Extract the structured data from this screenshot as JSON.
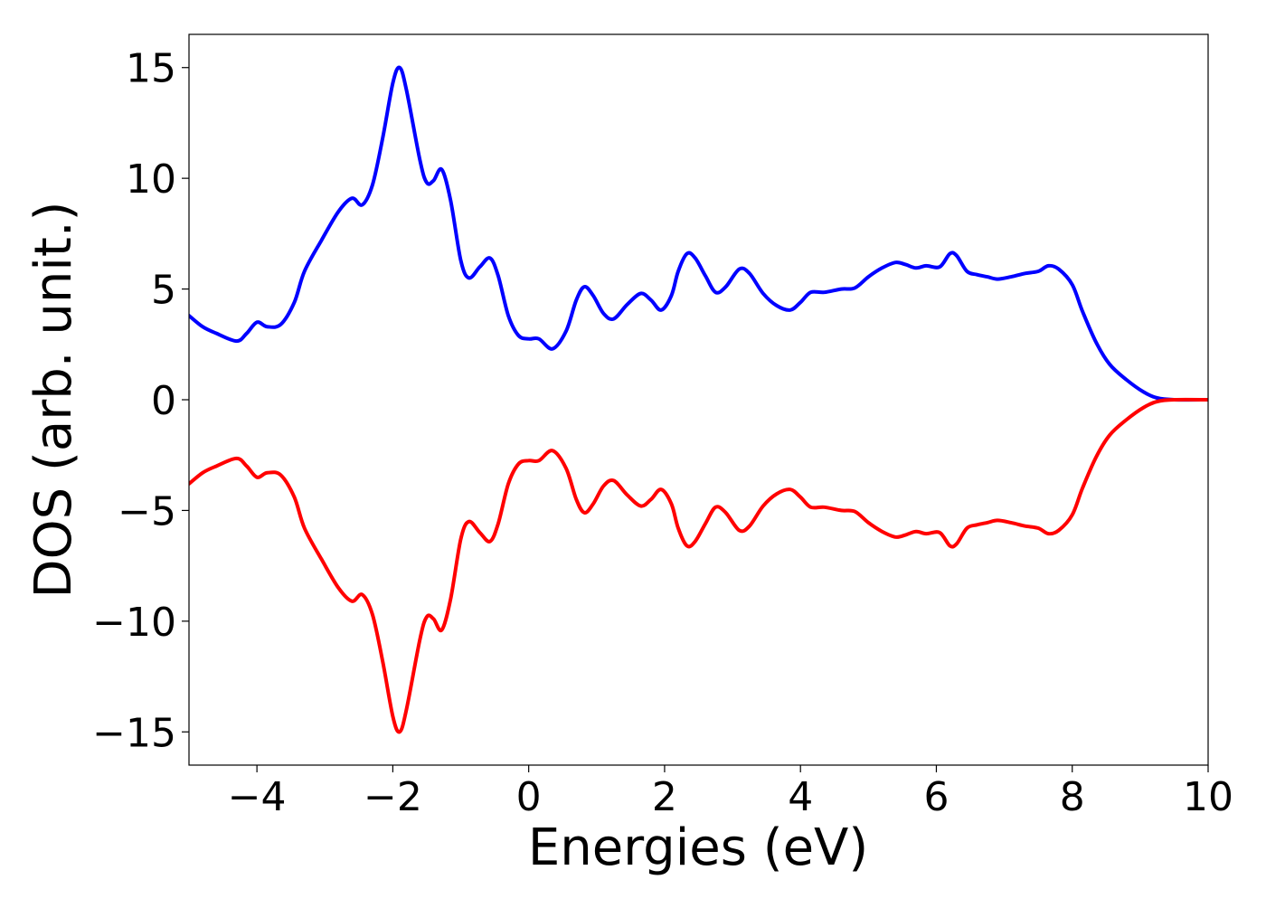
{
  "chart_data": {
    "type": "line",
    "title": "",
    "xlabel": "Energies (eV)",
    "ylabel": "DOS (arb. unit.)",
    "xlim": [
      -5,
      10
    ],
    "ylim": [
      -16.5,
      16.5
    ],
    "grid": false,
    "legend": "none",
    "x_ticks": [
      -4,
      -2,
      0,
      2,
      4,
      6,
      8,
      10
    ],
    "x_tick_labels": [
      "−4",
      "−2",
      "0",
      "2",
      "4",
      "6",
      "8",
      "10"
    ],
    "y_ticks": [
      -15,
      -10,
      -5,
      0,
      5,
      10,
      15
    ],
    "y_tick_labels": [
      "−15",
      "−10",
      "−5",
      "0",
      "5",
      "10",
      "15"
    ],
    "series": [
      {
        "color": "#0000ff",
        "points": [
          [
            -5.0,
            3.8
          ],
          [
            -4.8,
            3.3
          ],
          [
            -4.6,
            3.0
          ],
          [
            -4.3,
            2.65
          ],
          [
            -4.15,
            3.0
          ],
          [
            -4.0,
            3.5
          ],
          [
            -3.85,
            3.3
          ],
          [
            -3.65,
            3.4
          ],
          [
            -3.45,
            4.4
          ],
          [
            -3.3,
            5.8
          ],
          [
            -3.05,
            7.2
          ],
          [
            -2.8,
            8.5
          ],
          [
            -2.6,
            9.1
          ],
          [
            -2.45,
            8.8
          ],
          [
            -2.3,
            9.7
          ],
          [
            -2.15,
            11.8
          ],
          [
            -2.0,
            14.3
          ],
          [
            -1.9,
            15.0
          ],
          [
            -1.8,
            14.0
          ],
          [
            -1.6,
            10.8
          ],
          [
            -1.5,
            9.8
          ],
          [
            -1.4,
            9.9
          ],
          [
            -1.28,
            10.4
          ],
          [
            -1.15,
            9.0
          ],
          [
            -1.0,
            6.3
          ],
          [
            -0.88,
            5.5
          ],
          [
            -0.72,
            6.0
          ],
          [
            -0.57,
            6.4
          ],
          [
            -0.45,
            5.6
          ],
          [
            -0.3,
            3.8
          ],
          [
            -0.15,
            2.9
          ],
          [
            0.0,
            2.75
          ],
          [
            0.15,
            2.75
          ],
          [
            0.35,
            2.3
          ],
          [
            0.55,
            3.1
          ],
          [
            0.7,
            4.5
          ],
          [
            0.82,
            5.1
          ],
          [
            0.95,
            4.7
          ],
          [
            1.1,
            3.9
          ],
          [
            1.25,
            3.65
          ],
          [
            1.45,
            4.3
          ],
          [
            1.65,
            4.8
          ],
          [
            1.8,
            4.5
          ],
          [
            1.95,
            4.05
          ],
          [
            2.1,
            4.7
          ],
          [
            2.2,
            5.8
          ],
          [
            2.33,
            6.6
          ],
          [
            2.45,
            6.4
          ],
          [
            2.6,
            5.6
          ],
          [
            2.75,
            4.85
          ],
          [
            2.9,
            5.1
          ],
          [
            3.1,
            5.9
          ],
          [
            3.25,
            5.7
          ],
          [
            3.45,
            4.8
          ],
          [
            3.65,
            4.25
          ],
          [
            3.85,
            4.05
          ],
          [
            4.0,
            4.4
          ],
          [
            4.15,
            4.85
          ],
          [
            4.35,
            4.85
          ],
          [
            4.6,
            5.0
          ],
          [
            4.8,
            5.05
          ],
          [
            5.0,
            5.55
          ],
          [
            5.2,
            5.95
          ],
          [
            5.4,
            6.2
          ],
          [
            5.55,
            6.1
          ],
          [
            5.7,
            5.95
          ],
          [
            5.85,
            6.05
          ],
          [
            6.05,
            6.0
          ],
          [
            6.2,
            6.6
          ],
          [
            6.3,
            6.5
          ],
          [
            6.45,
            5.8
          ],
          [
            6.6,
            5.65
          ],
          [
            6.75,
            5.55
          ],
          [
            6.9,
            5.45
          ],
          [
            7.1,
            5.55
          ],
          [
            7.3,
            5.7
          ],
          [
            7.5,
            5.8
          ],
          [
            7.65,
            6.05
          ],
          [
            7.8,
            5.9
          ],
          [
            8.0,
            5.2
          ],
          [
            8.15,
            4.0
          ],
          [
            8.35,
            2.6
          ],
          [
            8.55,
            1.6
          ],
          [
            8.8,
            0.9
          ],
          [
            9.05,
            0.35
          ],
          [
            9.25,
            0.08
          ],
          [
            9.5,
            0.0
          ],
          [
            10.0,
            0.0
          ]
        ]
      },
      {
        "color": "#ff0000",
        "mirror_of": 0
      }
    ]
  }
}
